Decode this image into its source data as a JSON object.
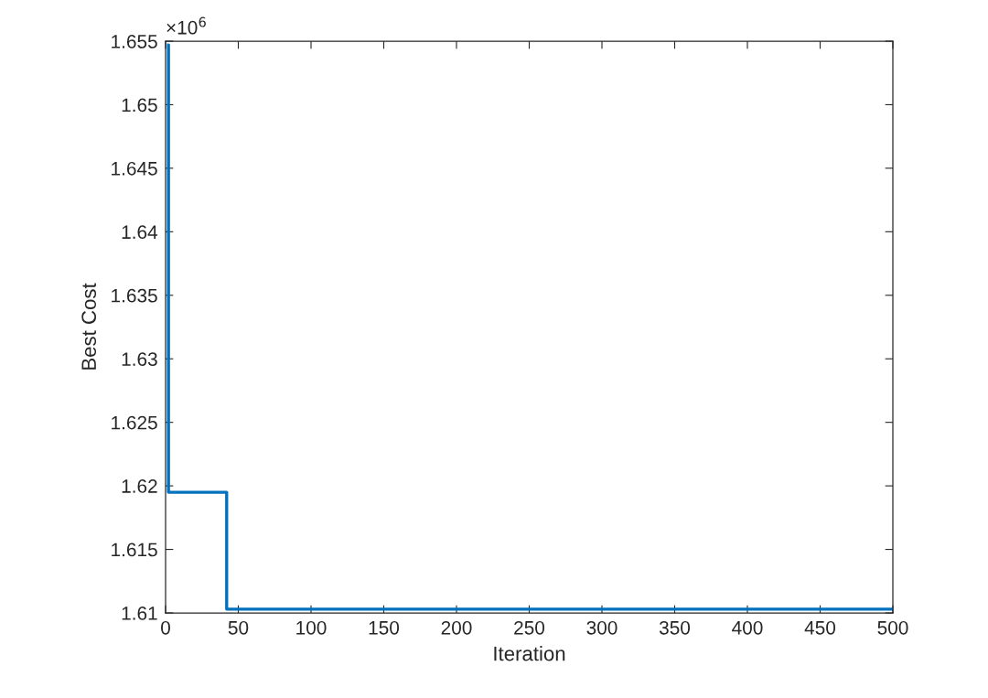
{
  "chart_data": {
    "type": "step",
    "xlabel": "Iteration",
    "ylabel": "Best Cost",
    "annotations": [
      "×10$^{6}$"
    ],
    "x": [
      1,
      2,
      42,
      500
    ],
    "series": [
      {
        "color": "#0072bd",
        "values": [
          1.6547,
          1.6195,
          1.6103,
          1.6103
        ]
      }
    ],
    "xlim": [
      0,
      500
    ],
    "xticks": [
      0,
      50,
      100,
      150,
      200,
      250,
      300,
      350,
      400,
      450,
      500
    ],
    "ylim": [
      1.61,
      1.655
    ],
    "yticks": [
      1.61,
      1.615,
      1.62,
      1.625,
      1.63,
      1.635,
      1.64,
      1.645,
      1.65,
      1.655
    ],
    "grid": false
  }
}
